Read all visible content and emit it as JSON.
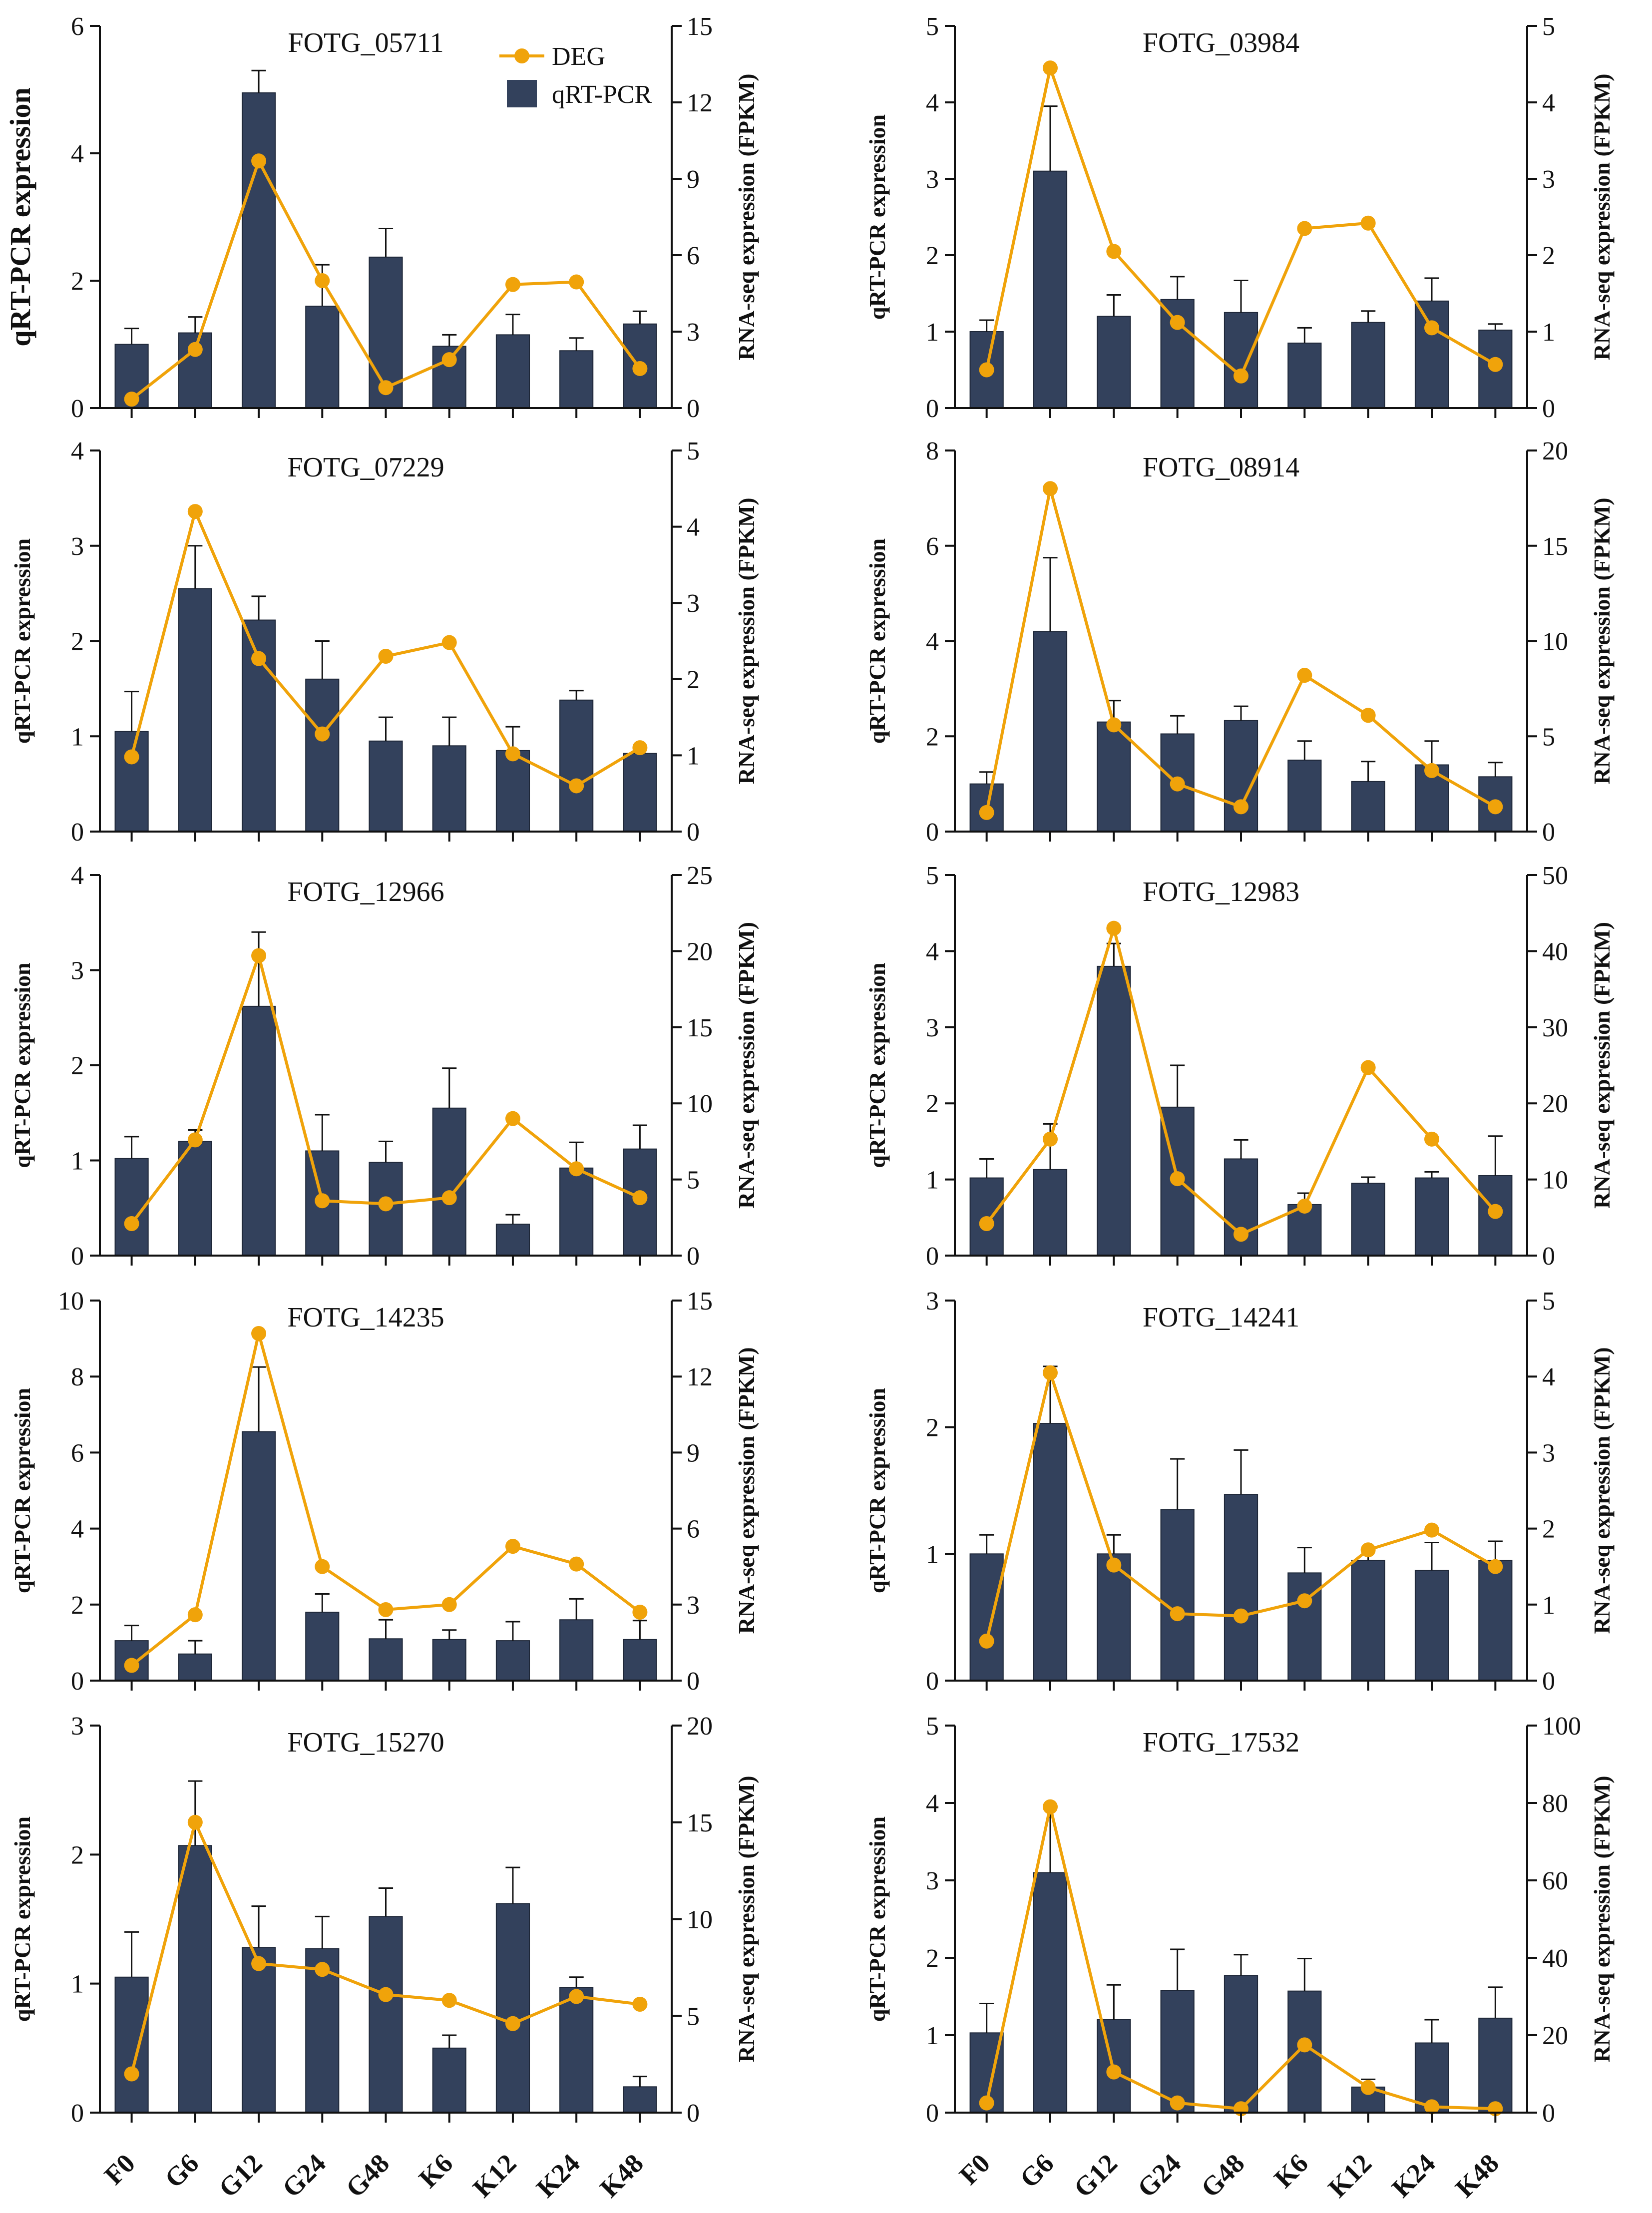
{
  "figure": {
    "legend": {
      "deg_label": "DEG",
      "qpcr_label": "qRT-PCR"
    },
    "colors": {
      "bar": "#33415c",
      "line": "#f0a30a",
      "axis": "#111111"
    }
  },
  "chart_data": [
    {
      "type": "bar",
      "title": "FOTG_05711",
      "categories": [
        "F0",
        "G6",
        "G12",
        "G24",
        "G48",
        "K6",
        "K12",
        "K24",
        "K48"
      ],
      "ylabel": "qRT-PCR  expression",
      "ylabel2": "RNA-seq expression (FPKM)",
      "ylim": [
        0,
        6
      ],
      "y2lim": [
        0,
        15
      ],
      "yticks": [
        0,
        2,
        4,
        6
      ],
      "y2ticks": [
        0,
        3,
        6,
        9,
        12,
        15
      ],
      "series": [
        {
          "name": "qRT-PCR",
          "kind": "bar",
          "axis": "left",
          "values": [
            1.0,
            1.18,
            4.95,
            1.6,
            2.37,
            0.97,
            1.15,
            0.9,
            1.32
          ],
          "errors": [
            0.25,
            0.25,
            0.35,
            0.65,
            0.45,
            0.18,
            0.32,
            0.2,
            0.2
          ]
        },
        {
          "name": "DEG",
          "kind": "line",
          "axis": "right",
          "values": [
            0.35,
            2.3,
            9.7,
            5.0,
            0.8,
            1.9,
            4.85,
            4.95,
            1.55
          ]
        }
      ]
    },
    {
      "type": "bar",
      "title": "FOTG_03984",
      "categories": [
        "F0",
        "G6",
        "G12",
        "G24",
        "G48",
        "K6",
        "K12",
        "K24",
        "K48"
      ],
      "ylabel": "qRT-PCR  expression",
      "ylabel2": "RNA-seq expression (FPKM)",
      "ylim": [
        0,
        5
      ],
      "y2lim": [
        0,
        5
      ],
      "yticks": [
        0,
        1,
        2,
        3,
        4,
        5
      ],
      "y2ticks": [
        0,
        1,
        2,
        3,
        4,
        5
      ],
      "series": [
        {
          "name": "qRT-PCR",
          "kind": "bar",
          "axis": "left",
          "values": [
            1.0,
            3.1,
            1.2,
            1.42,
            1.25,
            0.85,
            1.12,
            1.4,
            1.02
          ],
          "errors": [
            0.15,
            0.85,
            0.28,
            0.3,
            0.42,
            0.2,
            0.15,
            0.3,
            0.08
          ]
        },
        {
          "name": "DEG",
          "kind": "line",
          "axis": "right",
          "values": [
            0.5,
            4.45,
            2.05,
            1.12,
            0.42,
            2.35,
            2.42,
            1.05,
            0.57
          ]
        }
      ]
    },
    {
      "type": "bar",
      "title": "FOTG_07229",
      "categories": [
        "F0",
        "G6",
        "G12",
        "G24",
        "G48",
        "K6",
        "K12",
        "K24",
        "K48"
      ],
      "ylabel": "qRT-PCR  expression",
      "ylabel2": "RNA-seq expression (FPKM)",
      "ylim": [
        0,
        4
      ],
      "y2lim": [
        0,
        5
      ],
      "yticks": [
        0,
        1,
        2,
        3,
        4
      ],
      "y2ticks": [
        0,
        1,
        2,
        3,
        4,
        5
      ],
      "series": [
        {
          "name": "qRT-PCR",
          "kind": "bar",
          "axis": "left",
          "values": [
            1.05,
            2.55,
            2.22,
            1.6,
            0.95,
            0.9,
            0.85,
            1.38,
            0.82
          ],
          "errors": [
            0.42,
            0.45,
            0.25,
            0.4,
            0.25,
            0.3,
            0.25,
            0.1,
            0.06
          ]
        },
        {
          "name": "DEG",
          "kind": "line",
          "axis": "right",
          "values": [
            0.98,
            4.2,
            2.27,
            1.28,
            2.3,
            2.48,
            1.02,
            0.6,
            1.1
          ]
        }
      ]
    },
    {
      "type": "bar",
      "title": "FOTG_08914",
      "categories": [
        "F0",
        "G6",
        "G12",
        "G24",
        "G48",
        "K6",
        "K12",
        "K24",
        "K48"
      ],
      "ylabel": "qRT-PCR  expression",
      "ylabel2": "RNA-seq expression (FPKM)",
      "ylim": [
        0,
        8
      ],
      "y2lim": [
        0,
        20
      ],
      "yticks": [
        0,
        2,
        4,
        6,
        8
      ],
      "y2ticks": [
        0,
        5,
        10,
        15,
        20
      ],
      "series": [
        {
          "name": "qRT-PCR",
          "kind": "bar",
          "axis": "left",
          "values": [
            1.0,
            4.2,
            2.3,
            2.05,
            2.33,
            1.5,
            1.05,
            1.4,
            1.15
          ],
          "errors": [
            0.25,
            1.55,
            0.45,
            0.38,
            0.3,
            0.4,
            0.42,
            0.5,
            0.3
          ]
        },
        {
          "name": "DEG",
          "kind": "line",
          "axis": "right",
          "values": [
            1.0,
            18.0,
            5.6,
            2.5,
            1.3,
            8.2,
            6.1,
            3.2,
            1.3
          ]
        }
      ]
    },
    {
      "type": "bar",
      "title": "FOTG_12966",
      "categories": [
        "F0",
        "G6",
        "G12",
        "G24",
        "G48",
        "K6",
        "K12",
        "K24",
        "K48"
      ],
      "ylabel": "qRT-PCR  expression",
      "ylabel2": "RNA-seq expression (FPKM)",
      "ylim": [
        0,
        4
      ],
      "y2lim": [
        0,
        25
      ],
      "yticks": [
        0,
        1,
        2,
        3,
        4
      ],
      "y2ticks": [
        0,
        5,
        10,
        15,
        20,
        25
      ],
      "series": [
        {
          "name": "qRT-PCR",
          "kind": "bar",
          "axis": "left",
          "values": [
            1.02,
            1.2,
            2.62,
            1.1,
            0.98,
            1.55,
            0.33,
            0.92,
            1.12
          ],
          "errors": [
            0.23,
            0.12,
            0.78,
            0.38,
            0.22,
            0.42,
            0.1,
            0.27,
            0.25
          ]
        },
        {
          "name": "DEG",
          "kind": "line",
          "axis": "right",
          "values": [
            2.1,
            7.6,
            19.7,
            3.6,
            3.4,
            3.8,
            9.0,
            5.7,
            3.8
          ]
        }
      ]
    },
    {
      "type": "bar",
      "title": "FOTG_12983",
      "categories": [
        "F0",
        "G6",
        "G12",
        "G24",
        "G48",
        "K6",
        "K12",
        "K24",
        "K48"
      ],
      "ylabel": "qRT-PCR  expression",
      "ylabel2": "RNA-seq expression (FPKM)",
      "ylim": [
        0,
        5
      ],
      "y2lim": [
        0,
        50
      ],
      "yticks": [
        0,
        1,
        2,
        3,
        4,
        5
      ],
      "y2ticks": [
        0,
        10,
        20,
        30,
        40,
        50
      ],
      "series": [
        {
          "name": "qRT-PCR",
          "kind": "bar",
          "axis": "left",
          "values": [
            1.02,
            1.13,
            3.8,
            1.95,
            1.27,
            0.67,
            0.95,
            1.02,
            1.05
          ],
          "errors": [
            0.25,
            0.6,
            0.3,
            0.55,
            0.25,
            0.15,
            0.08,
            0.08,
            0.52
          ]
        },
        {
          "name": "DEG",
          "kind": "line",
          "axis": "right",
          "values": [
            4.2,
            15.3,
            43.0,
            10.1,
            2.8,
            6.5,
            24.7,
            15.3,
            5.8
          ]
        }
      ]
    },
    {
      "type": "bar",
      "title": "FOTG_14235",
      "categories": [
        "F0",
        "G6",
        "G12",
        "G24",
        "G48",
        "K6",
        "K12",
        "K24",
        "K48"
      ],
      "ylabel": "qRT-PCR  expression",
      "ylabel2": "RNA-seq expression (FPKM)",
      "ylim": [
        0,
        10
      ],
      "y2lim": [
        0,
        15
      ],
      "yticks": [
        0,
        2,
        4,
        6,
        8,
        10
      ],
      "y2ticks": [
        0,
        3,
        6,
        9,
        12,
        15
      ],
      "series": [
        {
          "name": "qRT-PCR",
          "kind": "bar",
          "axis": "left",
          "values": [
            1.05,
            0.7,
            6.55,
            1.8,
            1.1,
            1.08,
            1.05,
            1.6,
            1.08
          ],
          "errors": [
            0.4,
            0.35,
            1.7,
            0.48,
            0.5,
            0.25,
            0.5,
            0.55,
            0.5
          ]
        },
        {
          "name": "DEG",
          "kind": "line",
          "axis": "right",
          "values": [
            0.6,
            2.6,
            13.7,
            4.5,
            2.8,
            3.0,
            5.3,
            4.6,
            2.7
          ]
        }
      ]
    },
    {
      "type": "bar",
      "title": "FOTG_14241",
      "categories": [
        "F0",
        "G6",
        "G12",
        "G24",
        "G48",
        "K6",
        "K12",
        "K24",
        "K48"
      ],
      "ylabel": "qRT-PCR  expression",
      "ylabel2": "RNA-seq expression (FPKM)",
      "ylim": [
        0,
        3
      ],
      "y2lim": [
        0,
        5
      ],
      "yticks": [
        0,
        1,
        2,
        3
      ],
      "y2ticks": [
        0,
        1,
        2,
        3,
        4,
        5
      ],
      "series": [
        {
          "name": "qRT-PCR",
          "kind": "bar",
          "axis": "left",
          "values": [
            1.0,
            2.03,
            1.0,
            1.35,
            1.47,
            0.85,
            0.95,
            0.87,
            0.95
          ],
          "errors": [
            0.15,
            0.45,
            0.15,
            0.4,
            0.35,
            0.2,
            0.08,
            0.22,
            0.15
          ]
        },
        {
          "name": "DEG",
          "kind": "line",
          "axis": "right",
          "values": [
            0.52,
            4.05,
            1.52,
            0.88,
            0.85,
            1.05,
            1.72,
            1.98,
            1.5
          ]
        }
      ]
    },
    {
      "type": "bar",
      "title": "FOTG_15270",
      "categories": [
        "F0",
        "G6",
        "G12",
        "G24",
        "G48",
        "K6",
        "K12",
        "K24",
        "K48"
      ],
      "ylabel": "qRT-PCR  expression",
      "ylabel2": "RNA-seq expression (FPKM)",
      "ylim": [
        0,
        3
      ],
      "y2lim": [
        0,
        20
      ],
      "yticks": [
        0,
        1,
        2,
        3
      ],
      "y2ticks": [
        0,
        5,
        10,
        15,
        20
      ],
      "series": [
        {
          "name": "qRT-PCR",
          "kind": "bar",
          "axis": "left",
          "values": [
            1.05,
            2.07,
            1.28,
            1.27,
            1.52,
            0.5,
            1.62,
            0.97,
            0.2
          ],
          "errors": [
            0.35,
            0.5,
            0.32,
            0.25,
            0.22,
            0.1,
            0.28,
            0.08,
            0.08
          ]
        },
        {
          "name": "DEG",
          "kind": "line",
          "axis": "right",
          "values": [
            2.0,
            15.0,
            7.7,
            7.4,
            6.1,
            5.8,
            4.6,
            6.0,
            5.6
          ]
        }
      ]
    },
    {
      "type": "bar",
      "title": "FOTG_17532",
      "categories": [
        "F0",
        "G6",
        "G12",
        "G24",
        "G48",
        "K6",
        "K12",
        "K24",
        "K48"
      ],
      "ylabel": "qRT-PCR  expression",
      "ylabel2": "RNA-seq expression (FPKM)",
      "ylim": [
        0,
        5
      ],
      "y2lim": [
        0,
        100
      ],
      "yticks": [
        0,
        1,
        2,
        3,
        4,
        5
      ],
      "y2ticks": [
        0,
        20,
        40,
        60,
        80,
        100
      ],
      "series": [
        {
          "name": "qRT-PCR",
          "kind": "bar",
          "axis": "left",
          "values": [
            1.03,
            3.1,
            1.2,
            1.58,
            1.77,
            1.57,
            0.33,
            0.9,
            1.22
          ],
          "errors": [
            0.38,
            0.85,
            0.45,
            0.53,
            0.27,
            0.42,
            0.1,
            0.3,
            0.4
          ]
        },
        {
          "name": "DEG",
          "kind": "line",
          "axis": "right",
          "values": [
            2.5,
            79.0,
            10.5,
            2.5,
            1.0,
            17.5,
            6.5,
            1.5,
            1.0
          ]
        }
      ]
    }
  ]
}
